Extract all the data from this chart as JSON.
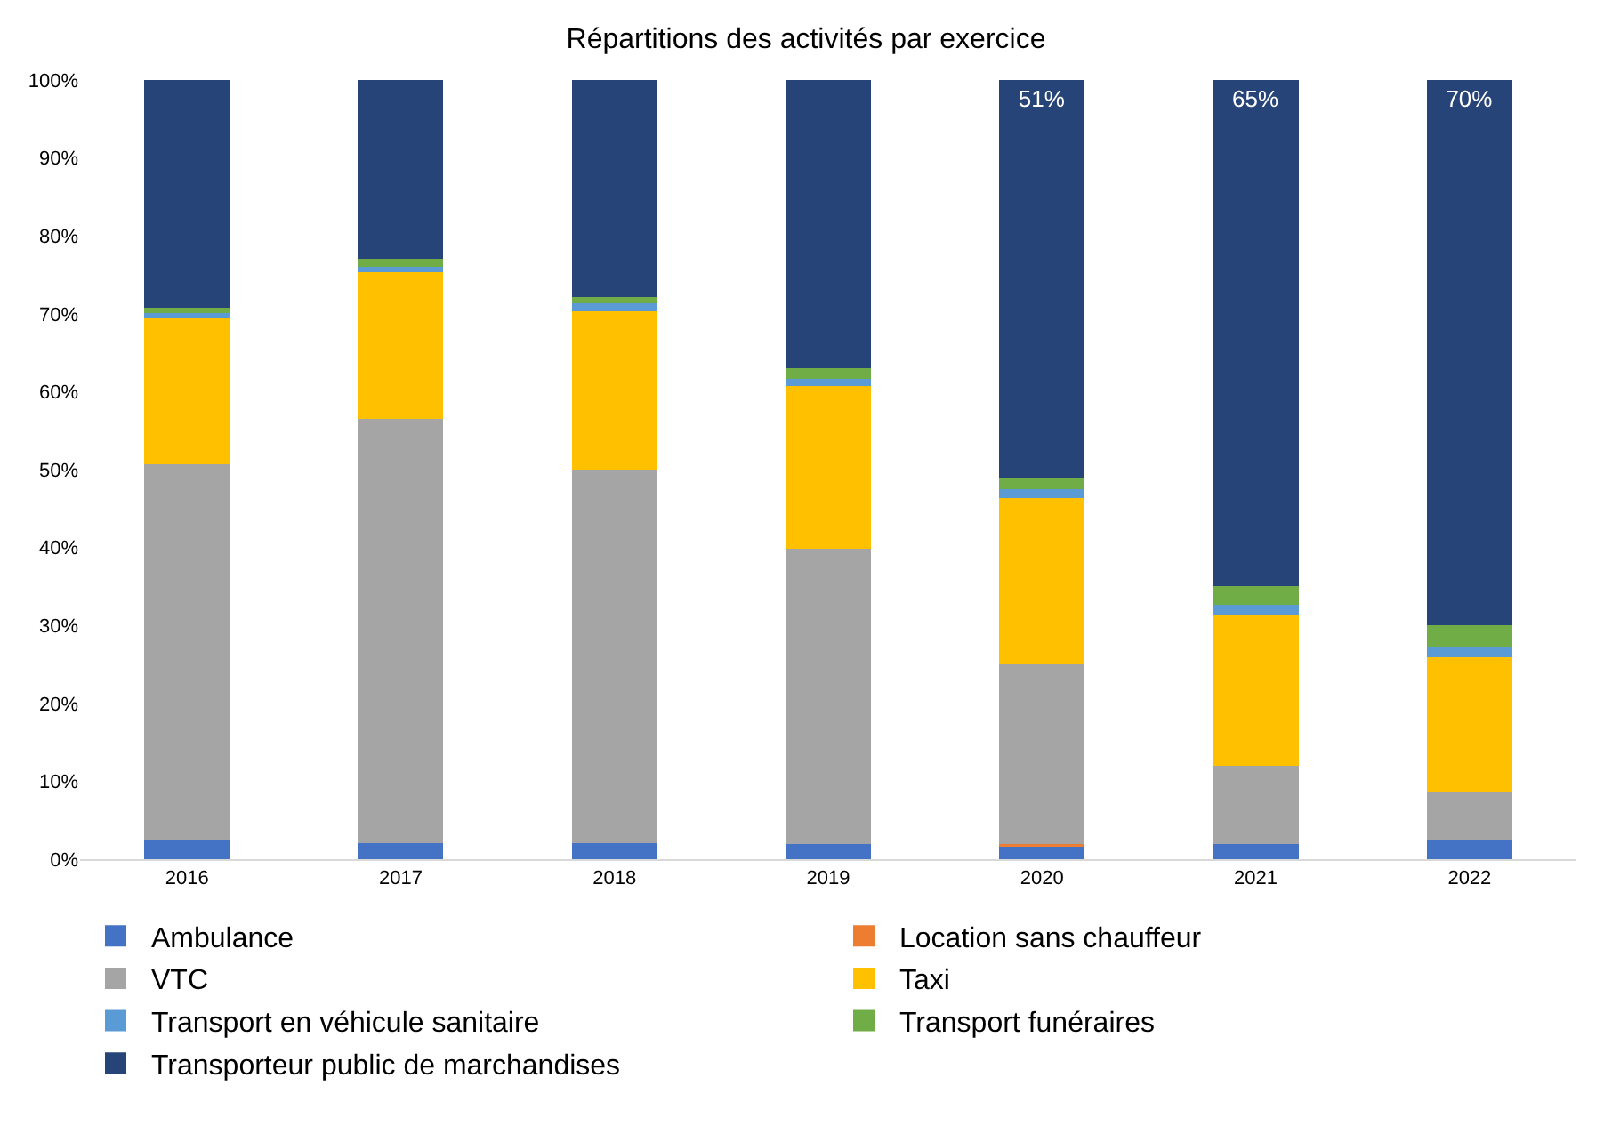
{
  "chart_data": {
    "type": "bar",
    "title": "Répartitions des activités par exercice",
    "stacked": true,
    "categories": [
      "2016",
      "2017",
      "2018",
      "2019",
      "2020",
      "2021",
      "2022"
    ],
    "series": [
      {
        "name": "Ambulance",
        "color": "#4472c4",
        "values": [
          2.5,
          2.1,
          2.1,
          1.9,
          1.8,
          1.9,
          2.5
        ]
      },
      {
        "name": "Location sans chauffeur",
        "color": "#ed7d31",
        "values": [
          0,
          0,
          0,
          0,
          0.1,
          0,
          0
        ]
      },
      {
        "name": "VTC",
        "color": "#a5a5a5",
        "values": [
          48.2,
          54.4,
          47.9,
          37.9,
          23.1,
          10.1,
          6.1
        ]
      },
      {
        "name": "Taxi",
        "color": "#ffc000",
        "values": [
          18.7,
          18.9,
          20.3,
          20.9,
          21.4,
          19.4,
          17.3
        ]
      },
      {
        "name": "Transport en véhicule sanitaire",
        "color": "#5b9bd5",
        "values": [
          0.7,
          0.6,
          1.0,
          1.0,
          1.1,
          1.2,
          1.4
        ]
      },
      {
        "name": "Transport funéraires",
        "color": "#70ad47",
        "values": [
          0.7,
          1.0,
          0.9,
          1.3,
          1.5,
          2.4,
          2.7
        ]
      },
      {
        "name": "Transporteur public de marchandises",
        "color": "#264478",
        "values": [
          29.2,
          23.0,
          27.8,
          37.0,
          51.0,
          65.0,
          70.0
        ],
        "value_labels": [
          null,
          null,
          null,
          null,
          "51%",
          "65%",
          "70%"
        ]
      }
    ],
    "ylim": [
      0,
      100
    ],
    "yticks": [
      {
        "value": 0,
        "label": "0%"
      },
      {
        "value": 10,
        "label": "10%"
      },
      {
        "value": 20,
        "label": "20%"
      },
      {
        "value": 30,
        "label": "30%"
      },
      {
        "value": 40,
        "label": "40%"
      },
      {
        "value": 50,
        "label": "50%"
      },
      {
        "value": 60,
        "label": "60%"
      },
      {
        "value": 70,
        "label": "70%"
      },
      {
        "value": 80,
        "label": "80%"
      },
      {
        "value": 90,
        "label": "90%"
      },
      {
        "value": 100,
        "label": "100%"
      }
    ],
    "grid": false,
    "legend": "bottom"
  }
}
